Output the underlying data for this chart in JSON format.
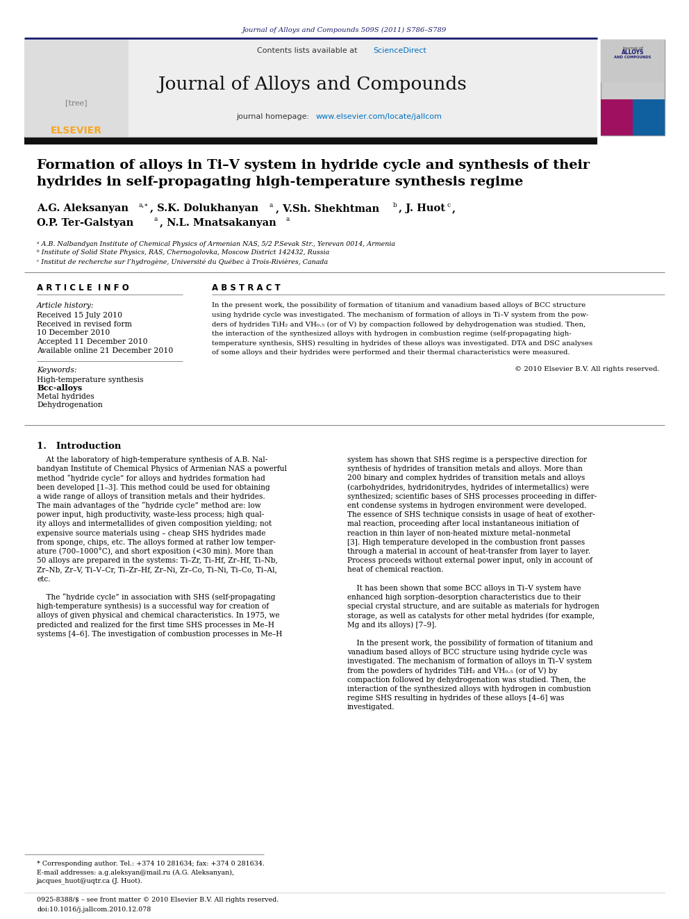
{
  "page_header_text": "Journal of Alloys and Compounds 509S (2011) S786–S789",
  "header_bg_color": "#e8e8e8",
  "header_border_color": "#1a1a6e",
  "journal_title": "Journal of Alloys and Compounds",
  "contents_text": "Contents lists available at ",
  "sciencedirect_text": "ScienceDirect",
  "sciencedirect_color": "#0070c0",
  "elsevier_orange": "#f5a623",
  "article_title_line1": "Formation of alloys in Ti–V system in hydride cycle and synthesis of their",
  "article_title_line2": "hydrides in self-propagating high-temperature synthesis regime",
  "affil_a": "ᵃ A.B. Nalbandyan Institute of Chemical Physics of Armenian NAS, 5/2 P.Sevak Str., Yerevan 0014, Armenia",
  "affil_b": "ᵇ Institute of Solid State Physics, RAS, Chernogolovka, Moscow District 142432, Russia",
  "affil_c": "ᶜ Institut de recherche sur l’hydrogène, Université du Québec à Trois-Rivières, Canada",
  "article_info_title": "A R T I C L E  I N F O",
  "abstract_title": "A B S T R A C T",
  "article_history_label": "Article history:",
  "received1": "Received 15 July 2010",
  "received2": "Received in revised form",
  "received2b": "10 December 2010",
  "accepted": "Accepted 11 December 2010",
  "available": "Available online 21 December 2010",
  "keywords_label": "Keywords:",
  "kw1": "High-temperature synthesis",
  "kw2": "Bcc-alloys",
  "kw3": "Metal hydrides",
  "kw4": "Dehydrogenation",
  "copyright": "© 2010 Elsevier B.V. All rights reserved.",
  "intro_heading": "1.   Introduction",
  "footnote_star": "* Corresponding author. Tel.: +374 10 281634; fax: +374 0 281634.",
  "footnote_email": "E-mail addresses: a.g.aleksyan@mail.ru (A.G. Aleksanyan),",
  "footnote_email2": "jacques_huot@uqtr.ca (J. Huot).",
  "footnote_issn": "0925-8388/$ – see front matter © 2010 Elsevier B.V. All rights reserved.",
  "footnote_doi": "doi:10.1016/j.jallcom.2010.12.078",
  "bg_color": "#ffffff",
  "text_color": "#000000",
  "header_journal_color": "#1a1a6e"
}
